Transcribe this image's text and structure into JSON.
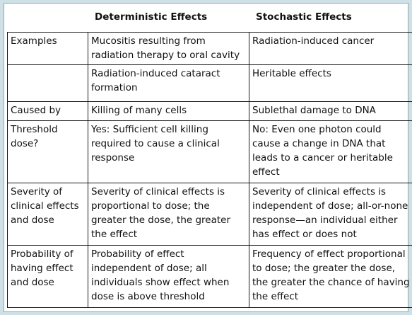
{
  "table": {
    "headers": [
      "",
      "Deterministic Effects",
      "Stochastic Effects"
    ],
    "rows": [
      {
        "label": "Examples",
        "deterministic": "Mucositis resulting from radiation therapy to oral cavity",
        "stochastic": "Radiation-induced cancer"
      },
      {
        "label": "",
        "deterministic": "Radiation-induced cataract formation",
        "stochastic": "Heritable effects"
      },
      {
        "label": "Caused by",
        "deterministic": "Killing of many cells",
        "stochastic": "Sublethal damage to DNA"
      },
      {
        "label": "Threshold dose?",
        "deterministic": "Yes: Sufficient cell killing required to cause a clinical response",
        "stochastic": "No: Even one photon could cause a change in DNA that leads to a cancer or heritable effect"
      },
      {
        "label": "Severity of clinical effects and dose",
        "deterministic": "Severity of clinical effects is proportional to dose; the greater the dose, the greater the effect",
        "stochastic": "Severity of clinical effects is independent of dose; all-or-none response—an individual either has effect or does not"
      },
      {
        "label": "Probability of having effect and dose",
        "deterministic": "Probability of effect independent of dose; all individuals show effect when dose is above threshold",
        "stochastic": "Frequency of effect proportional to dose; the greater the dose, the greater the chance of having the effect"
      }
    ]
  }
}
